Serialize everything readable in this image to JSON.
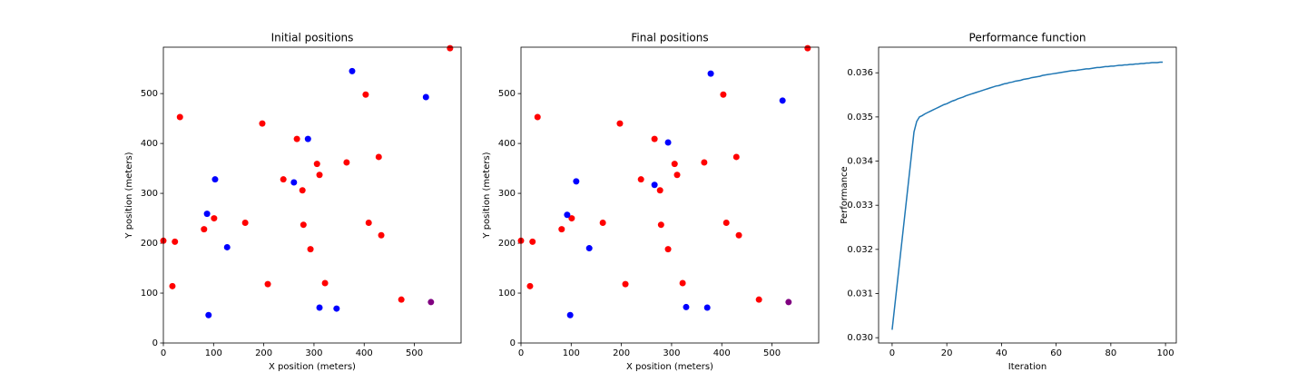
{
  "chart_data": [
    {
      "type": "scatter",
      "title": "Initial positions",
      "x_label": "X position (meters)",
      "y_label": "Y position (meters)",
      "xlim": [
        0,
        593
      ],
      "ylim": [
        0,
        593
      ],
      "xticks": [
        0,
        100,
        200,
        300,
        400,
        500
      ],
      "yticks": [
        0,
        100,
        200,
        300,
        400,
        500
      ],
      "series": [
        {
          "color": "#ff0000",
          "x": [
            0,
            23,
            18,
            33,
            81,
            101,
            163,
            197,
            208,
            239,
            266,
            277,
            279,
            293,
            306,
            311,
            322,
            365,
            403,
            409,
            429,
            434,
            474,
            571
          ],
          "values": [
            205,
            203,
            114,
            453,
            228,
            250,
            241,
            440,
            118,
            328,
            409,
            306,
            237,
            188,
            359,
            337,
            120,
            362,
            498,
            241,
            373,
            216,
            87,
            591
          ]
        },
        {
          "color": "#0000ff",
          "x": [
            376,
            523,
            288,
            103,
            87,
            127,
            260,
            90,
            311,
            345
          ],
          "values": [
            545,
            493,
            409,
            328,
            259,
            192,
            322,
            56,
            71,
            69
          ]
        },
        {
          "color": "#800080",
          "x": [
            533
          ],
          "values": [
            82
          ]
        }
      ]
    },
    {
      "type": "scatter",
      "title": "Final positions",
      "x_label": "X position (meters)",
      "y_label": "Y position (meters)",
      "xlim": [
        0,
        593
      ],
      "ylim": [
        0,
        593
      ],
      "xticks": [
        0,
        100,
        200,
        300,
        400,
        500
      ],
      "yticks": [
        0,
        100,
        200,
        300,
        400,
        500
      ],
      "series": [
        {
          "color": "#ff0000",
          "x": [
            0,
            23,
            18,
            33,
            81,
            101,
            163,
            197,
            208,
            239,
            266,
            277,
            279,
            293,
            306,
            311,
            322,
            365,
            403,
            409,
            429,
            434,
            474,
            571
          ],
          "values": [
            205,
            203,
            114,
            453,
            228,
            250,
            241,
            440,
            118,
            328,
            409,
            306,
            237,
            188,
            359,
            337,
            120,
            362,
            498,
            241,
            373,
            216,
            87,
            591
          ]
        },
        {
          "color": "#0000ff",
          "x": [
            378,
            521,
            293,
            110,
            92,
            136,
            266,
            98,
            329,
            371
          ],
          "values": [
            540,
            486,
            402,
            324,
            257,
            190,
            317,
            56,
            72,
            71
          ]
        },
        {
          "color": "#800080",
          "x": [
            533
          ],
          "values": [
            82
          ]
        }
      ]
    },
    {
      "type": "line",
      "title": "Performance function",
      "x_label": "Iteration",
      "y_label": "Performance",
      "xlim": [
        -4.95,
        103.95
      ],
      "ylim": [
        0.02988,
        0.03658
      ],
      "xticks": [
        0,
        20,
        40,
        60,
        80,
        100
      ],
      "yticks": [
        {
          "value": 0.03,
          "label": "0.030"
        },
        0.031,
        0.032,
        0.033,
        0.034,
        0.035,
        0.036
      ],
      "x": [
        0,
        1,
        2,
        3,
        4,
        5,
        6,
        7,
        8,
        9,
        10,
        11,
        12,
        13,
        14,
        15,
        16,
        17,
        18,
        19,
        20,
        21,
        22,
        23,
        24,
        25,
        26,
        27,
        28,
        29,
        30,
        31,
        32,
        33,
        34,
        35,
        36,
        37,
        38,
        39,
        40,
        41,
        42,
        43,
        44,
        45,
        46,
        47,
        48,
        49,
        50,
        51,
        52,
        53,
        54,
        55,
        56,
        57,
        58,
        59,
        60,
        61,
        62,
        63,
        64,
        65,
        66,
        67,
        68,
        69,
        70,
        71,
        72,
        73,
        74,
        75,
        76,
        77,
        78,
        79,
        80,
        81,
        82,
        83,
        84,
        85,
        86,
        87,
        88,
        89,
        90,
        91,
        92,
        93,
        94,
        95,
        96,
        97,
        98,
        99
      ],
      "series": [
        {
          "color": "#1f77b4",
          "values": [
            0.03018,
            0.03074,
            0.0313,
            0.03186,
            0.03242,
            0.03298,
            0.03354,
            0.0341,
            0.03466,
            0.0349,
            0.035,
            0.03503,
            0.03507,
            0.0351,
            0.03513,
            0.03516,
            0.03519,
            0.03522,
            0.03525,
            0.03528,
            0.0353,
            0.03533,
            0.03536,
            0.03538,
            0.03541,
            0.03543,
            0.03545,
            0.03548,
            0.0355,
            0.03552,
            0.03554,
            0.03556,
            0.03558,
            0.0356,
            0.03562,
            0.03564,
            0.03566,
            0.03568,
            0.0357,
            0.03571,
            0.03573,
            0.03575,
            0.03576,
            0.03578,
            0.03579,
            0.03581,
            0.03582,
            0.03583,
            0.03585,
            0.03586,
            0.03587,
            0.03589,
            0.0359,
            0.03591,
            0.03592,
            0.03594,
            0.03595,
            0.03596,
            0.03597,
            0.03598,
            0.03599,
            0.036,
            0.03601,
            0.03602,
            0.03603,
            0.03604,
            0.03605,
            0.03605,
            0.03606,
            0.03607,
            0.03608,
            0.03609,
            0.03609,
            0.0361,
            0.03611,
            0.03612,
            0.03612,
            0.03613,
            0.03614,
            0.03614,
            0.03615,
            0.03615,
            0.03616,
            0.03617,
            0.03617,
            0.03618,
            0.03618,
            0.03619,
            0.03619,
            0.0362,
            0.0362,
            0.03621,
            0.03621,
            0.03622,
            0.03622,
            0.03623,
            0.03623,
            0.03623,
            0.03624,
            0.03624
          ]
        }
      ]
    }
  ]
}
